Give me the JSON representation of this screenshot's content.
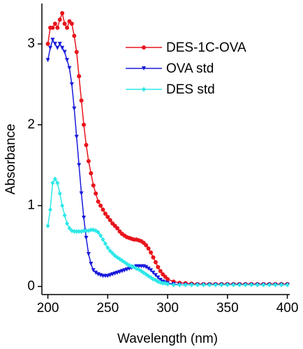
{
  "chart_data": {
    "type": "line",
    "xlabel": "Wavelength (nm)",
    "ylabel": "Absorbance",
    "x": [
      200,
      202,
      204,
      206,
      208,
      210,
      212,
      214,
      216,
      218,
      220,
      222,
      224,
      226,
      228,
      230,
      232,
      234,
      236,
      238,
      240,
      242,
      244,
      246,
      248,
      250,
      252,
      254,
      256,
      258,
      260,
      262,
      264,
      266,
      268,
      270,
      272,
      274,
      276,
      278,
      280,
      282,
      284,
      286,
      288,
      290,
      292,
      294,
      296,
      298,
      300,
      305,
      310,
      315,
      320,
      325,
      330,
      335,
      340,
      345,
      350,
      355,
      360,
      365,
      370,
      375,
      380,
      385,
      390,
      395,
      400
    ],
    "series": [
      {
        "name": "DES-1C-OVA",
        "color": "#e8141c",
        "marker": "circle",
        "values": [
          3.0,
          3.2,
          3.2,
          3.25,
          3.2,
          3.3,
          3.38,
          3.25,
          3.2,
          3.28,
          3.25,
          3.1,
          2.9,
          2.6,
          2.3,
          2.0,
          1.75,
          1.55,
          1.4,
          1.25,
          1.15,
          1.05,
          1.0,
          0.95,
          0.9,
          0.86,
          0.82,
          0.78,
          0.75,
          0.72,
          0.68,
          0.65,
          0.63,
          0.61,
          0.6,
          0.59,
          0.58,
          0.58,
          0.57,
          0.56,
          0.54,
          0.51,
          0.47,
          0.42,
          0.36,
          0.3,
          0.24,
          0.19,
          0.15,
          0.12,
          0.09,
          0.06,
          0.045,
          0.04,
          0.035,
          0.03,
          0.03,
          0.03,
          0.03,
          0.03,
          0.03,
          0.03,
          0.03,
          0.03,
          0.03,
          0.03,
          0.03,
          0.03,
          0.03,
          0.03,
          0.03
        ]
      },
      {
        "name": "OVA std",
        "color": "#1a1adb",
        "marker": "triangle-down",
        "values": [
          2.8,
          2.95,
          3.05,
          3.0,
          2.95,
          3.0,
          2.95,
          2.9,
          2.8,
          2.7,
          2.5,
          2.2,
          1.85,
          1.5,
          1.15,
          0.85,
          0.6,
          0.4,
          0.28,
          0.2,
          0.17,
          0.15,
          0.14,
          0.13,
          0.13,
          0.13,
          0.14,
          0.15,
          0.16,
          0.17,
          0.18,
          0.19,
          0.2,
          0.21,
          0.22,
          0.23,
          0.24,
          0.25,
          0.25,
          0.25,
          0.25,
          0.24,
          0.22,
          0.2,
          0.17,
          0.14,
          0.11,
          0.08,
          0.06,
          0.05,
          0.04,
          0.03,
          0.02,
          0.02,
          0.02,
          0.02,
          0.02,
          0.02,
          0.02,
          0.02,
          0.02,
          0.02,
          0.02,
          0.02,
          0.02,
          0.02,
          0.02,
          0.02,
          0.02,
          0.02,
          0.02
        ]
      },
      {
        "name": "DES std",
        "color": "#2ee8e8",
        "marker": "diamond",
        "values": [
          0.75,
          0.95,
          1.28,
          1.33,
          1.28,
          1.15,
          1.0,
          0.88,
          0.78,
          0.72,
          0.69,
          0.68,
          0.68,
          0.68,
          0.68,
          0.69,
          0.69,
          0.69,
          0.7,
          0.7,
          0.69,
          0.67,
          0.63,
          0.58,
          0.53,
          0.48,
          0.44,
          0.41,
          0.38,
          0.36,
          0.34,
          0.32,
          0.3,
          0.28,
          0.26,
          0.25,
          0.24,
          0.22,
          0.21,
          0.19,
          0.17,
          0.15,
          0.13,
          0.11,
          0.09,
          0.08,
          0.06,
          0.05,
          0.04,
          0.04,
          0.03,
          0.02,
          0.02,
          0.02,
          0.02,
          0.02,
          0.02,
          0.02,
          0.02,
          0.02,
          0.02,
          0.02,
          0.02,
          0.02,
          0.02,
          0.02,
          0.02,
          0.02,
          0.02,
          0.02,
          0.02
        ]
      }
    ],
    "xlim": [
      195,
      402
    ],
    "ylim": [
      -0.1,
      3.5
    ],
    "xticks": [
      200,
      250,
      300,
      350,
      400
    ],
    "yticks": [
      0,
      1,
      2,
      3
    ],
    "legend": "upper right",
    "grid": false
  }
}
